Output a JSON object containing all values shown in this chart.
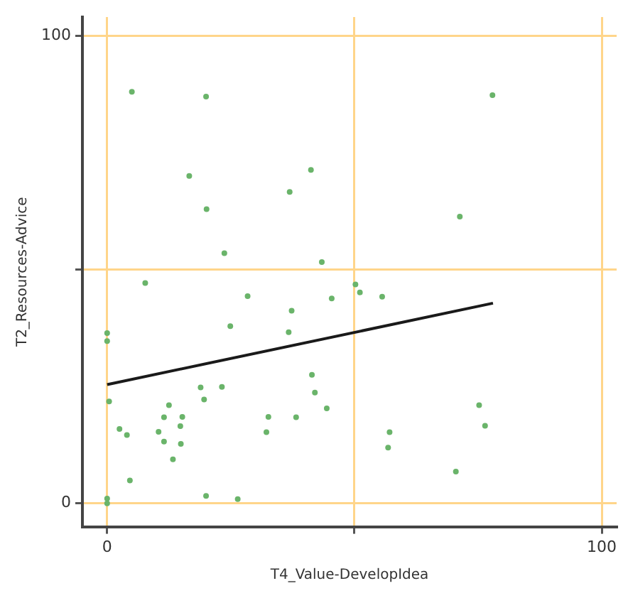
{
  "chart_data": {
    "type": "scatter",
    "xlabel": "T4_Value-DevelopIdea",
    "ylabel": "T2_Resources-Advice",
    "xlim": [
      -5,
      103
    ],
    "ylim": [
      -5,
      104
    ],
    "xticks": [
      0,
      {
        "value": 50,
        "label": null
      },
      100
    ],
    "yticks": [
      0,
      {
        "value": 50,
        "label": null
      },
      100
    ],
    "grid": true,
    "legend": false,
    "marker": "circle",
    "series": [
      {
        "color": "#6ab46a",
        "x": [
          5,
          20,
          16.6,
          41.2,
          36.9,
          20.1,
          23.7,
          43.4,
          77.9,
          71.3,
          7.7,
          50.2,
          28.4,
          45.4,
          37.3,
          24.9,
          36.7,
          0,
          0,
          41.4,
          18.9,
          23.2,
          0.4,
          19.6,
          42,
          12.5,
          44.4,
          11.5,
          15.2,
          32.6,
          38.2,
          2.5,
          14.8,
          10.4,
          4,
          32.2,
          11.5,
          14.9,
          13.3,
          4.6,
          0,
          0,
          20,
          26.4,
          51.1,
          55.6,
          75.2,
          76.4,
          57.1,
          56.8,
          70.5
        ],
        "values": [
          88,
          87,
          70,
          71.3,
          66.6,
          62.9,
          53.5,
          51.6,
          87.3,
          61.3,
          47.1,
          46.8,
          44.3,
          43.8,
          41.2,
          37.9,
          36.6,
          36.4,
          34.7,
          27.5,
          24.8,
          24.9,
          21.8,
          22.2,
          23.7,
          21,
          20.3,
          18.4,
          18.5,
          18.5,
          18.4,
          15.9,
          16.5,
          15.3,
          14.6,
          15.2,
          13.2,
          12.7,
          9.4,
          4.9,
          0,
          1,
          1.6,
          0.9,
          45.1,
          44.2,
          21,
          16.6,
          15.2,
          11.9,
          6.8
        ]
      },
      {
        "type": "line",
        "color": "#1a1a1a",
        "x": [
          0,
          78
        ],
        "values": [
          25.4,
          42.8
        ],
        "marker": "none"
      }
    ]
  }
}
